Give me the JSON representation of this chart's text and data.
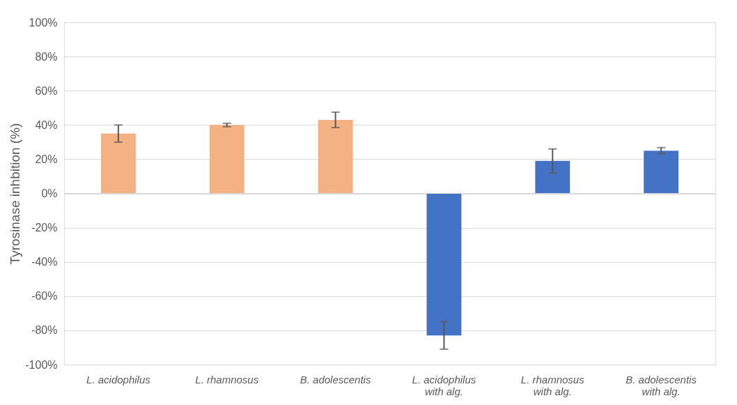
{
  "chart_data": {
    "type": "bar",
    "ylabel": "Tyrosinase inhbition (%)",
    "categories": [
      "L. acidophilus",
      "L. rhamnosus",
      "B. adolescentis",
      "L. acidophilus with alg.",
      "L. rhamnosus with alg.",
      "B. adolescentis with alg."
    ],
    "values": [
      35,
      40,
      43,
      -83,
      19,
      25
    ],
    "colors": [
      "#f4b183",
      "#f4b183",
      "#f4b183",
      "#4472c4",
      "#4472c4",
      "#4472c4"
    ],
    "errors": [
      5,
      1,
      4.5,
      8,
      7,
      1.8
    ],
    "ylim": [
      -100,
      100
    ],
    "yticks": [
      {
        "value": -100,
        "label": "-100%"
      },
      {
        "value": -80,
        "label": "-80%"
      },
      {
        "value": -60,
        "label": "-60%"
      },
      {
        "value": -40,
        "label": "-40%"
      },
      {
        "value": -20,
        "label": "-20%"
      },
      {
        "value": 0,
        "label": "0%"
      },
      {
        "value": 20,
        "label": "20%"
      },
      {
        "value": 40,
        "label": "40%"
      },
      {
        "value": 60,
        "label": "60%"
      },
      {
        "value": 80,
        "label": "80%"
      },
      {
        "value": 100,
        "label": "100%"
      }
    ],
    "grid": "y"
  }
}
